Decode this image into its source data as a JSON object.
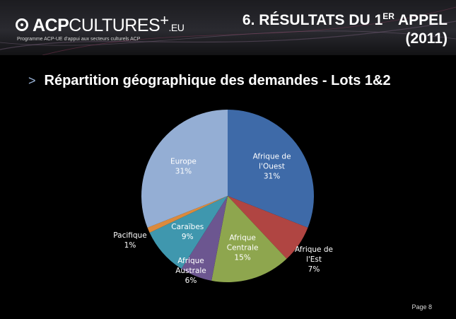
{
  "header": {
    "logo": {
      "brand_bold": "ACP",
      "brand_light": "CULTURES",
      "plus": "+",
      "suffix": ".EU",
      "tagline": "Programme ACP-UE d'appui aux secteurs culturels ACP"
    },
    "title": {
      "line1_prefix": "6. RÉSULTATS DU 1",
      "line1_sup": "ER",
      "line1_suffix": " APPEL",
      "line2": "(2011)"
    }
  },
  "subtitle": {
    "bullet": ">",
    "text": "Répartition géographique des demandes - Lots 1&2"
  },
  "chart_data": {
    "type": "pie",
    "title": "",
    "start_angle_deg": 0,
    "direction": "clockwise",
    "slices": [
      {
        "label_lines": [
          "Afrique de",
          "l'Ouest",
          "31%"
        ],
        "value": 31,
        "color": "#3e6aa8",
        "label_pos": "inside"
      },
      {
        "label_lines": [
          "Afrique de",
          "l'Est",
          "7%"
        ],
        "value": 7,
        "color": "#b04542",
        "label_pos": "outside"
      },
      {
        "label_lines": [
          "Afrique",
          "Centrale",
          "15%"
        ],
        "value": 15,
        "color": "#8ea64e",
        "label_pos": "inside"
      },
      {
        "label_lines": [
          "Afrique",
          "Australe",
          "6%"
        ],
        "value": 6,
        "color": "#6c5690",
        "label_pos": "outside"
      },
      {
        "label_lines": [
          "Caraïbes",
          "9%"
        ],
        "value": 9,
        "color": "#3f97ae",
        "label_pos": "inside"
      },
      {
        "label_lines": [
          "Pacifique",
          "1%"
        ],
        "value": 1,
        "color": "#db8a3c",
        "label_pos": "outside"
      },
      {
        "label_lines": [
          "Europe",
          "31%"
        ],
        "value": 31,
        "color": "#94aed4",
        "label_pos": "inside"
      }
    ],
    "legend": "none"
  },
  "footer": {
    "page": "Page 8"
  }
}
